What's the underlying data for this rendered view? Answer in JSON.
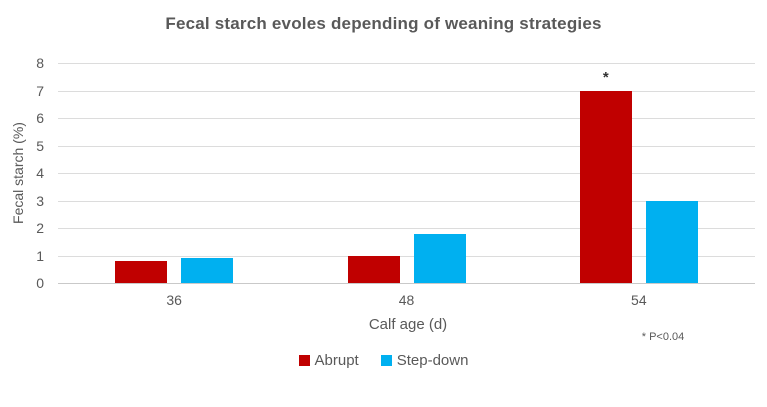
{
  "chart_data": {
    "type": "bar",
    "title": "Fecal starch evoles depending of weaning strategies",
    "xlabel": "Calf age (d)",
    "ylabel": "Fecal starch (%)",
    "categories": [
      "36",
      "48",
      "54"
    ],
    "series": [
      {
        "name": "Abrupt",
        "color": "#C00000",
        "values": [
          0.8,
          1.0,
          7.0
        ]
      },
      {
        "name": "Step-down",
        "color": "#00B0F0",
        "values": [
          0.9,
          1.8,
          3.0
        ]
      }
    ],
    "ylim": [
      0,
      8
    ],
    "ytick_step": 1,
    "grid": true,
    "legend_position": "bottom",
    "annotations": [
      {
        "series": "Abrupt",
        "category": "54",
        "text": "*"
      }
    ],
    "footnote": "* P<0.04"
  }
}
